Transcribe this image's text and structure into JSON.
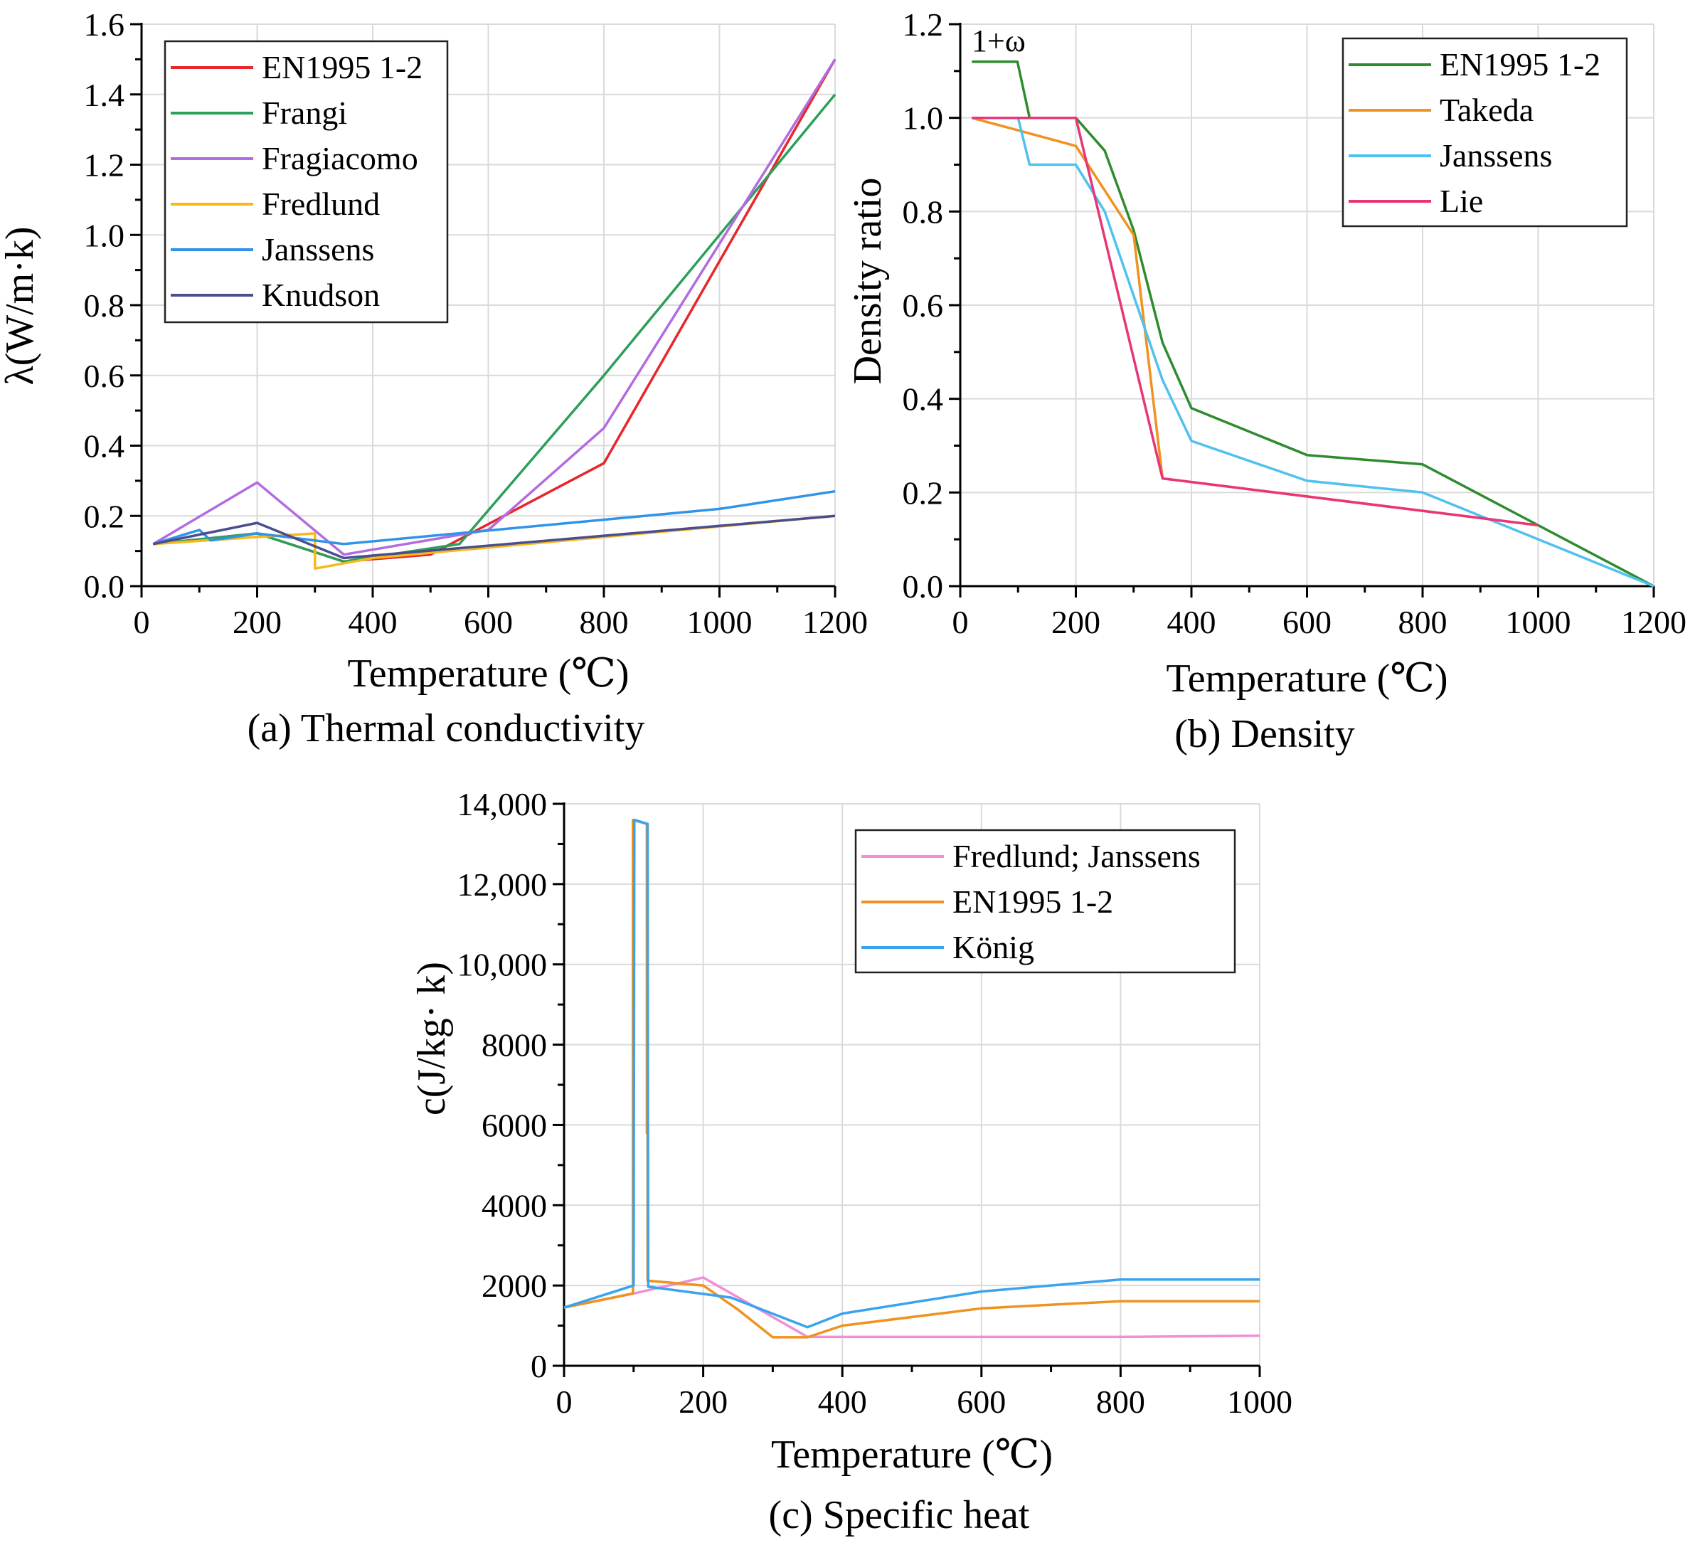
{
  "colors": {
    "red": "#e8262b",
    "green_a": "#2ca05a",
    "purple": "#b36be0",
    "yellow": "#f6b91a",
    "blue": "#2f93e8",
    "navy": "#4a4e8f",
    "green_b": "#2e8b2e",
    "orange": "#f0921f",
    "lightblue": "#4fc1ef",
    "pink": "#e8357a",
    "pink_light": "#ef8fd6",
    "blue_c": "#3aa3ee",
    "grid": "#dadada",
    "axis": "#000000"
  },
  "chart_data": [
    {
      "id": "a",
      "type": "line",
      "caption": "(a) Thermal conductivity",
      "xlabel": "Temperature (℃)",
      "ylabel": "λ(W/m·k)",
      "xlim": [
        0,
        1200
      ],
      "ylim": [
        0,
        1.6
      ],
      "xticks": [
        0,
        200,
        400,
        600,
        800,
        1000,
        1200
      ],
      "xtick_labels": [
        "0",
        "200",
        "400",
        "600",
        "800",
        "1000",
        "1200"
      ],
      "yticks": [
        0,
        0.2,
        0.4,
        0.6,
        0.8,
        1.0,
        1.2,
        1.4,
        1.6
      ],
      "ytick_labels": [
        "0.0",
        "0.2",
        "0.4",
        "0.6",
        "0.8",
        "1.0",
        "1.2",
        "1.4",
        "1.6"
      ],
      "grid": true,
      "legend_position": "top-left",
      "series": [
        {
          "name": "EN1995 1-2",
          "color": "red",
          "x": [
            20,
            200,
            350,
            500,
            800,
            1200
          ],
          "y": [
            0.12,
            0.15,
            0.07,
            0.09,
            0.35,
            1.5
          ]
        },
        {
          "name": "Frangi",
          "color": "green_a",
          "x": [
            20,
            200,
            350,
            550,
            800,
            1200
          ],
          "y": [
            0.12,
            0.15,
            0.07,
            0.12,
            0.6,
            1.4
          ]
        },
        {
          "name": "Fragiacomo",
          "color": "purple",
          "x": [
            20,
            200,
            350,
            600,
            800,
            1200
          ],
          "y": [
            0.12,
            0.295,
            0.09,
            0.16,
            0.45,
            1.5
          ]
        },
        {
          "name": "Fredlund",
          "color": "yellow",
          "x": [
            20,
            200,
            300,
            300,
            400,
            1200
          ],
          "y": [
            0.12,
            0.14,
            0.15,
            0.05,
            0.08,
            0.2
          ]
        },
        {
          "name": "Janssens",
          "color": "blue",
          "x": [
            20,
            100,
            120,
            200,
            350,
            1000,
            1200
          ],
          "y": [
            0.12,
            0.16,
            0.13,
            0.15,
            0.12,
            0.22,
            0.27
          ]
        },
        {
          "name": "Knudson",
          "color": "navy",
          "x": [
            20,
            200,
            350,
            1200
          ],
          "y": [
            0.12,
            0.18,
            0.08,
            0.2
          ]
        }
      ]
    },
    {
      "id": "b",
      "type": "line",
      "caption": "(b) Density",
      "xlabel": "Temperature (℃)",
      "ylabel": "Density ratio",
      "xlim": [
        0,
        1200
      ],
      "ylim": [
        0,
        1.2
      ],
      "xticks": [
        0,
        200,
        400,
        600,
        800,
        1000,
        1200
      ],
      "xtick_labels": [
        "0",
        "200",
        "400",
        "600",
        "800",
        "1000",
        "1200"
      ],
      "yticks": [
        0,
        0.2,
        0.4,
        0.6,
        0.8,
        1.0,
        1.2
      ],
      "ytick_labels": [
        "0.0",
        "0.2",
        "0.4",
        "0.6",
        "0.8",
        "1.0",
        "1.2"
      ],
      "grid": true,
      "legend_position": "top-right",
      "annotation": "1+ω",
      "series": [
        {
          "name": "EN1995 1-2",
          "color": "green_b",
          "x": [
            20,
            99,
            120,
            200,
            250,
            300,
            350,
            400,
            600,
            800,
            1200
          ],
          "y": [
            1.12,
            1.12,
            1.0,
            1.0,
            0.93,
            0.76,
            0.52,
            0.38,
            0.28,
            0.26,
            0.0
          ]
        },
        {
          "name": "Takeda",
          "color": "orange",
          "x": [
            20,
            200,
            300,
            350,
            1000
          ],
          "y": [
            1.0,
            0.94,
            0.75,
            0.23,
            0.13
          ]
        },
        {
          "name": "Janssens",
          "color": "lightblue",
          "x": [
            20,
            100,
            120,
            200,
            250,
            300,
            350,
            400,
            600,
            800,
            1200
          ],
          "y": [
            1.0,
            1.0,
            0.9,
            0.9,
            0.8,
            0.62,
            0.44,
            0.31,
            0.225,
            0.2,
            0.0
          ]
        },
        {
          "name": "Lie",
          "color": "pink",
          "x": [
            20,
            200,
            350,
            1000
          ],
          "y": [
            1.0,
            1.0,
            0.23,
            0.13
          ]
        }
      ]
    },
    {
      "id": "c",
      "type": "line",
      "caption": "(c) Specific heat",
      "xlabel": "Temperature (℃)",
      "ylabel": "c(J/kg· k)",
      "xlim": [
        0,
        1000
      ],
      "ylim": [
        0,
        14000
      ],
      "xticks": [
        0,
        200,
        400,
        600,
        800,
        1000
      ],
      "xtick_labels": [
        "0",
        "200",
        "400",
        "600",
        "800",
        "1000"
      ],
      "yticks": [
        0,
        2000,
        4000,
        6000,
        8000,
        10000,
        12000,
        14000
      ],
      "ytick_labels": [
        "0",
        "2000",
        "4000",
        "6000",
        "8000",
        "10,000",
        "12,000",
        "14,000"
      ],
      "grid": true,
      "legend_position": "top-right",
      "series": [
        {
          "name": "Fredlund; Janssens",
          "color": "pink_light",
          "x": [
            0,
            100,
            200,
            350,
            800,
            1000
          ],
          "y": [
            1450,
            1800,
            2200,
            720,
            720,
            750
          ]
        },
        {
          "name": "EN1995 1-2",
          "color": "orange",
          "x": [
            0,
            99,
            99,
            119,
            119,
            120,
            120,
            200,
            250,
            300,
            350,
            400,
            600,
            800,
            1000
          ],
          "y": [
            1450,
            1800,
            13600,
            13500,
            5800,
            13500,
            2120,
            2000,
            1400,
            710,
            710,
            1000,
            1430,
            1610,
            1610
          ]
        },
        {
          "name": "König",
          "color": "blue_c",
          "x": [
            0,
            100,
            101,
            120,
            121,
            240,
            350,
            400,
            600,
            800,
            1000
          ],
          "y": [
            1450,
            2000,
            13600,
            13500,
            1970,
            1700,
            960,
            1300,
            1850,
            2150,
            2150
          ]
        }
      ]
    }
  ]
}
